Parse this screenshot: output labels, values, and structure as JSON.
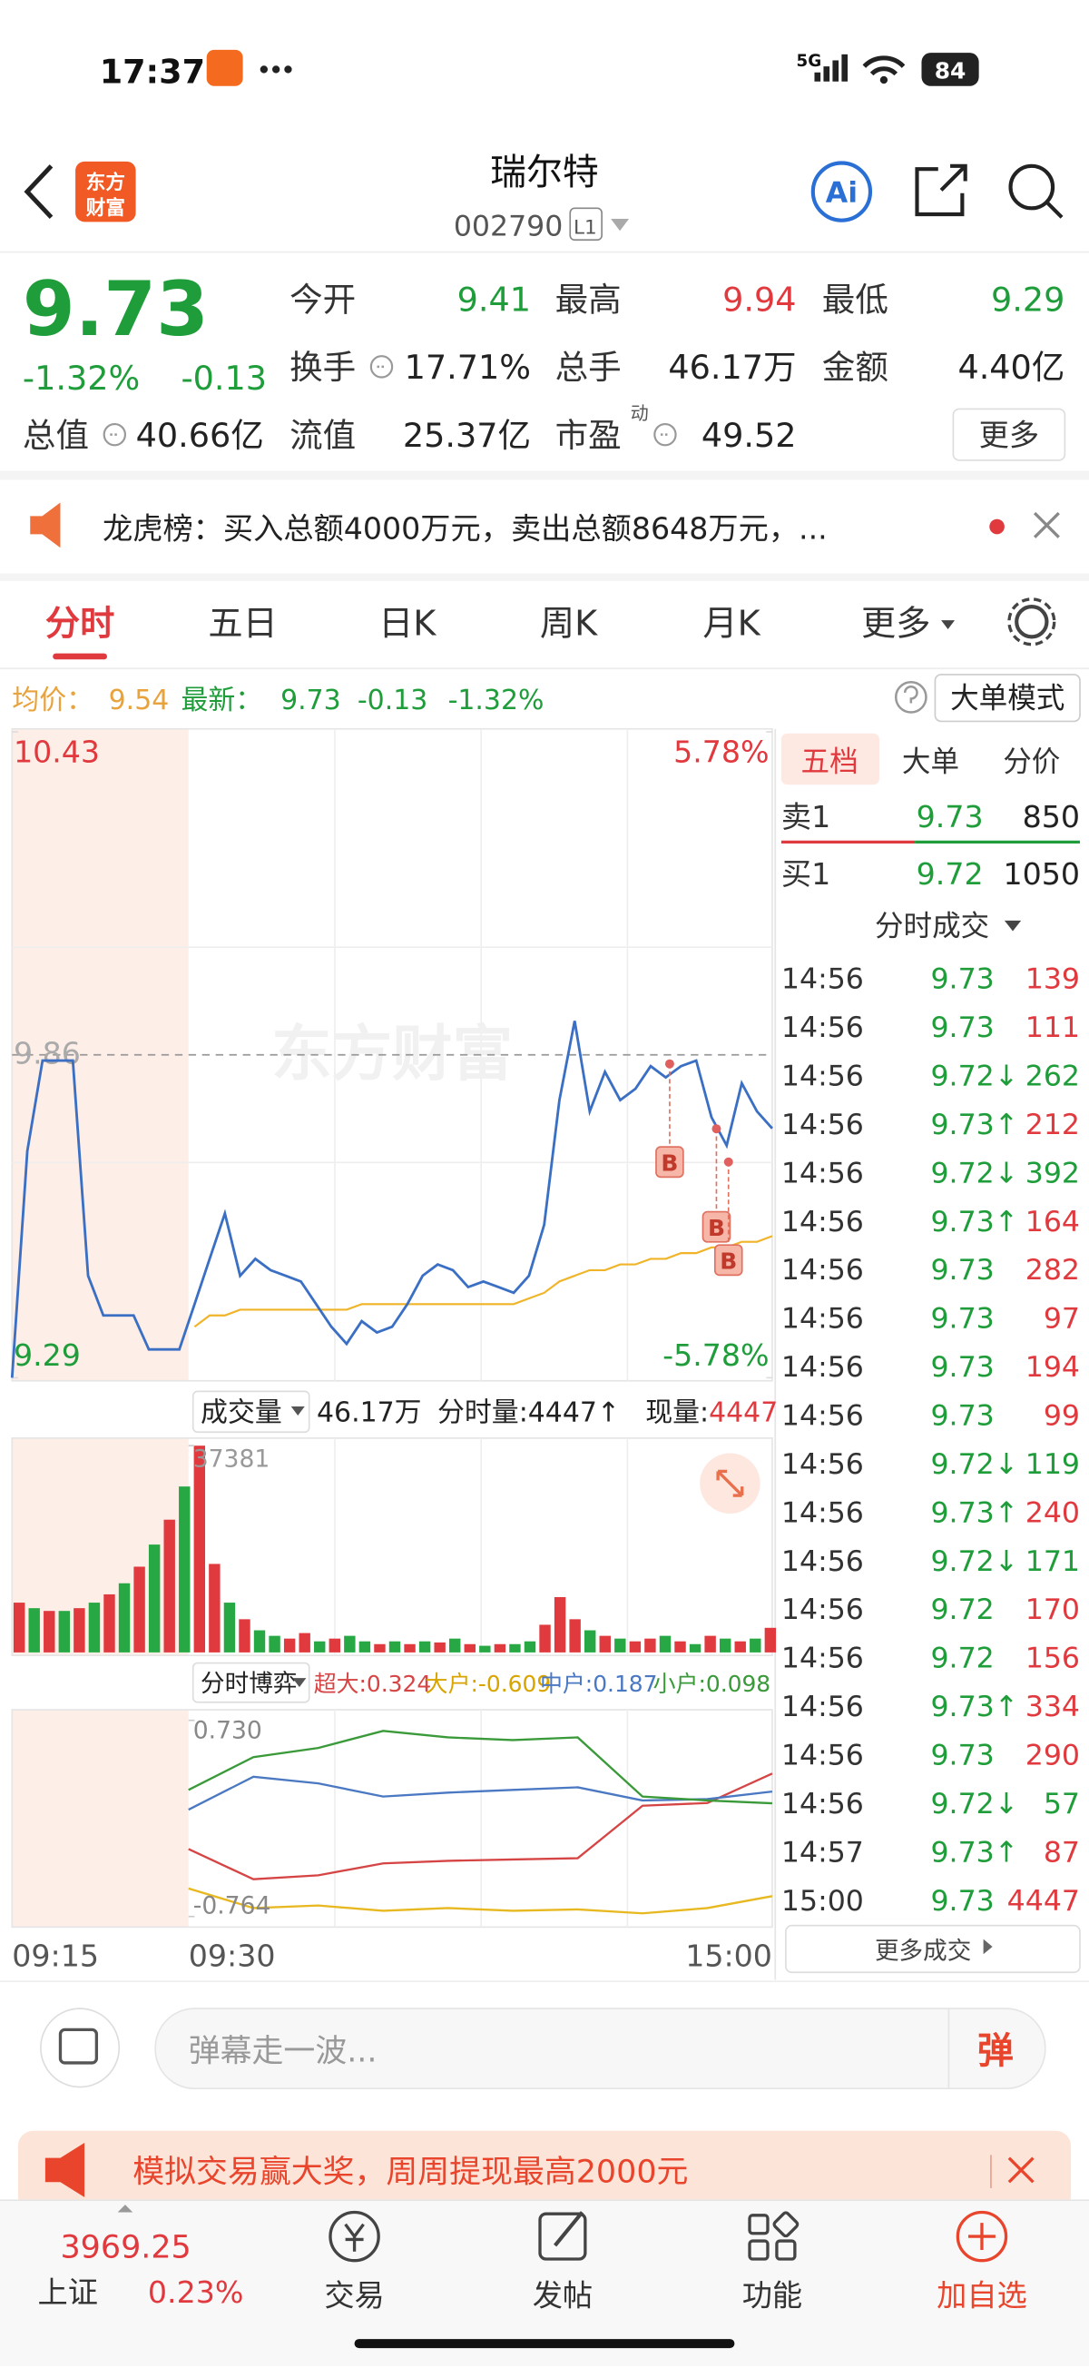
{
  "status_bar": {
    "time": "17:37",
    "network": "5G",
    "battery": "84"
  },
  "header": {
    "logo": [
      "东方",
      "财富"
    ],
    "title": "瑞尔特",
    "code": "002790",
    "level": "L1",
    "ai": "Ai"
  },
  "quote": {
    "price": "9.73",
    "change_pct": "-1.32%",
    "change": "-0.13",
    "fields": [
      {
        "label": "今开",
        "value": "9.41",
        "color": "green"
      },
      {
        "label": "最高",
        "value": "9.94",
        "color": "red"
      },
      {
        "label": "最低",
        "value": "9.29",
        "color": "green"
      },
      {
        "label": "换手",
        "value": "17.71%"
      },
      {
        "label": "总手",
        "value": "46.17万"
      },
      {
        "label": "金额",
        "value": "4.40亿"
      },
      {
        "label": "总值",
        "value": "40.66亿"
      },
      {
        "label": "流值",
        "value": "25.37亿"
      },
      {
        "label": "市盈",
        "sup": "动",
        "value": "49.52"
      }
    ],
    "more": "更多"
  },
  "notice": "龙虎榜：买入总额4000万元，卖出总额8648万元，...",
  "tabs": {
    "items": [
      "分时",
      "五日",
      "日K",
      "周K",
      "月K",
      "更多"
    ],
    "active": 0
  },
  "summary": {
    "avg_label": "均价：",
    "avg": "9.54",
    "latest_label": "最新：",
    "latest": "9.73",
    "change": "-0.13",
    "change_pct": "-1.32%",
    "mode": "大单模式"
  },
  "watermark": "东方财富",
  "chart_data": [
    {
      "type": "line",
      "ylim": [
        9.29,
        10.43
      ],
      "yticks": [
        10.43,
        9.86,
        9.29
      ],
      "y2lim": [
        -5.78,
        5.78
      ],
      "y2ticks": [
        {
          "value": 5.78,
          "label": "5.78%"
        },
        {
          "value": -5.78,
          "label": "-5.78%"
        }
      ],
      "series": [
        {
          "color": "#3a6fc4",
          "values": [
            9.29,
            9.69,
            9.85,
            9.85,
            9.85,
            9.47,
            9.4,
            9.4,
            9.4,
            9.34,
            9.34,
            9.34,
            9.42,
            9.5,
            9.58,
            9.47,
            9.5,
            9.48,
            9.47,
            9.46,
            9.42,
            9.38,
            9.35,
            9.39,
            9.37,
            9.38,
            9.42,
            9.47,
            9.49,
            9.48,
            9.45,
            9.46,
            9.45,
            9.44,
            9.47,
            9.56,
            9.78,
            9.92,
            9.76,
            9.83,
            9.78,
            9.8,
            9.84,
            9.82,
            9.84,
            9.85,
            9.75,
            9.7,
            9.81,
            9.76,
            9.73
          ]
        },
        {
          "color": "#f0b429",
          "values": [
            null,
            null,
            null,
            null,
            null,
            null,
            null,
            null,
            null,
            null,
            null,
            null,
            9.38,
            9.4,
            9.4,
            9.41,
            9.41,
            9.41,
            9.41,
            9.41,
            9.41,
            9.41,
            9.41,
            9.42,
            9.42,
            9.42,
            9.42,
            9.42,
            9.42,
            9.42,
            9.42,
            9.42,
            9.42,
            9.42,
            9.43,
            9.44,
            9.46,
            9.47,
            9.48,
            9.48,
            9.49,
            9.49,
            9.5,
            9.5,
            9.51,
            9.51,
            9.52,
            9.52,
            9.53,
            9.53,
            9.54
          ]
        }
      ],
      "buy_signals": [
        "B",
        "B",
        "B"
      ]
    },
    {
      "type": "bar",
      "label": "成交量",
      "total": "46.17万",
      "minute_volume": "分时量:4447↑",
      "current_label": "现量:",
      "current": 4447,
      "ylim": [
        0,
        37381
      ],
      "yticks": [
        37381
      ],
      "values": [
        9000,
        8000,
        7500,
        7500,
        8000,
        9000,
        10500,
        12500,
        15500,
        19500,
        24000,
        30000,
        37381,
        16000,
        9000,
        6000,
        4000,
        3000,
        2500,
        3500,
        2000,
        2500,
        3000,
        2000,
        1500,
        2000,
        1500,
        2000,
        1800,
        2500,
        1500,
        1200,
        1500,
        1500,
        2000,
        5000,
        10000,
        6000,
        4000,
        3000,
        2500,
        2000,
        2500,
        3000,
        2000,
        1500,
        3000,
        2500,
        2000,
        2500,
        4447
      ],
      "colors": [
        "#e0393e",
        "#27a844",
        "#e0393e",
        "#27a844",
        "#e0393e",
        "#27a844",
        "#e0393e",
        "#27a844",
        "#e0393e",
        "#27a844",
        "#e0393e",
        "#27a844",
        "#e0393e",
        "#e0393e",
        "#27a844",
        "#e0393e",
        "#27a844",
        "#27a844",
        "#e0393e",
        "#e0393e",
        "#27a844",
        "#e0393e",
        "#27a844",
        "#27a844",
        "#e0393e",
        "#27a844",
        "#e0393e",
        "#27a844",
        "#e0393e",
        "#27a844",
        "#e0393e",
        "#27a844",
        "#e0393e",
        "#27a844",
        "#27a844",
        "#e0393e",
        "#e0393e",
        "#e0393e",
        "#27a844",
        "#e0393e",
        "#27a844",
        "#e0393e",
        "#e0393e",
        "#27a844",
        "#e0393e",
        "#27a844",
        "#e0393e",
        "#27a844",
        "#e0393e",
        "#27a844",
        "#e0393e"
      ]
    },
    {
      "type": "line",
      "label": "分时博弈",
      "ylim": [
        -0.764,
        0.73
      ],
      "yticks": [
        {
          "value": 0.73,
          "label": "0.730"
        },
        -0.764
      ],
      "series": [
        {
          "legend": "超大:0.324",
          "color": "#d64545",
          "values": [
            -0.25,
            -0.48,
            -0.45,
            -0.36,
            -0.34,
            -0.33,
            -0.32,
            0.08,
            0.1,
            0.324
          ]
        },
        {
          "legend": "大户:-0.609",
          "color": "#e8b820",
          "values": [
            -0.55,
            -0.7,
            -0.68,
            -0.72,
            -0.7,
            -0.72,
            -0.71,
            -0.74,
            -0.7,
            -0.609
          ]
        },
        {
          "legend": "中户:0.187",
          "color": "#4a78c2",
          "values": [
            0.05,
            0.3,
            0.25,
            0.15,
            0.18,
            0.2,
            0.22,
            0.12,
            0.13,
            0.187
          ]
        },
        {
          "legend": "小户:0.098",
          "color": "#3a9a3a",
          "values": [
            0.2,
            0.45,
            0.52,
            0.65,
            0.6,
            0.58,
            0.6,
            0.15,
            0.12,
            0.098
          ]
        }
      ]
    }
  ],
  "time_axis": [
    "09:15",
    "09:30",
    "15:00"
  ],
  "order_book": {
    "tabs": [
      "五档",
      "大单",
      "分价"
    ],
    "levels": [
      {
        "label": "卖1",
        "price": "9.73",
        "volume": 850
      },
      {
        "label": "买1",
        "price": "9.72",
        "volume": 1050
      }
    ],
    "trades_title": "分时成交",
    "trades": [
      {
        "time": "14:56",
        "price": "9.73",
        "volume": 139,
        "color": "red"
      },
      {
        "time": "14:56",
        "price": "9.73",
        "volume": 111,
        "color": "red"
      },
      {
        "time": "14:56",
        "price": "9.72↓",
        "volume": 262,
        "color": "green"
      },
      {
        "time": "14:56",
        "price": "9.73↑",
        "volume": 212,
        "color": "red"
      },
      {
        "time": "14:56",
        "price": "9.72↓",
        "volume": 392,
        "color": "green"
      },
      {
        "time": "14:56",
        "price": "9.73↑",
        "volume": 164,
        "color": "red"
      },
      {
        "time": "14:56",
        "price": "9.73",
        "volume": 282,
        "color": "red"
      },
      {
        "time": "14:56",
        "price": "9.73",
        "volume": 97,
        "color": "red"
      },
      {
        "time": "14:56",
        "price": "9.73",
        "volume": 194,
        "color": "red"
      },
      {
        "time": "14:56",
        "price": "9.73",
        "volume": 99,
        "color": "red"
      },
      {
        "time": "14:56",
        "price": "9.72↓",
        "volume": 119,
        "color": "green"
      },
      {
        "time": "14:56",
        "price": "9.73↑",
        "volume": 240,
        "color": "red"
      },
      {
        "time": "14:56",
        "price": "9.72↓",
        "volume": 171,
        "color": "green"
      },
      {
        "time": "14:56",
        "price": "9.72",
        "volume": 170,
        "color": "red"
      },
      {
        "time": "14:56",
        "price": "9.72",
        "volume": 156,
        "color": "red"
      },
      {
        "time": "14:56",
        "price": "9.73↑",
        "volume": 334,
        "color": "red"
      },
      {
        "time": "14:56",
        "price": "9.73",
        "volume": 290,
        "color": "red"
      },
      {
        "time": "14:56",
        "price": "9.72↓",
        "volume": 57,
        "color": "green"
      },
      {
        "time": "14:57",
        "price": "9.73↑",
        "volume": 87,
        "color": "red"
      },
      {
        "time": "15:00",
        "price": "9.73",
        "volume": 4447,
        "color": "red"
      }
    ],
    "more": "更多成交"
  },
  "comment": {
    "placeholder": "弹幕走一波...",
    "button": "弹"
  },
  "banner": "模拟交易赢大奖，周周提现最高2000元",
  "nav": {
    "index_value": "3969.25",
    "index_name": "上证",
    "index_change": "0.23%",
    "items": [
      "交易",
      "发帖",
      "功能",
      "加自选"
    ]
  }
}
